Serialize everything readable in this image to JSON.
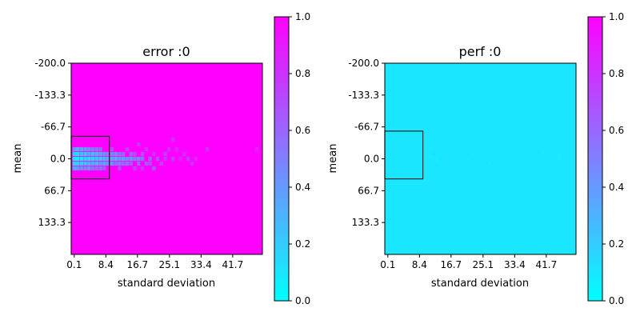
{
  "colors": {
    "low": "#00ffff",
    "high": "#ff00ff",
    "colormap": "cool"
  },
  "chart_data": [
    {
      "type": "heatmap",
      "title": "error :0",
      "xlabel": "standard deviation",
      "ylabel": "mean",
      "x_ticks": [
        "0.1",
        "8.4",
        "16.7",
        "25.1",
        "33.4",
        "41.7"
      ],
      "x_tick_values": [
        0.1,
        8.4,
        16.7,
        25.1,
        33.4,
        41.7
      ],
      "y_ticks": [
        "-200.0",
        "-133.3",
        "-66.7",
        "0.0",
        "66.7",
        "133.3"
      ],
      "y_tick_values": [
        -200.0,
        -133.3,
        -66.7,
        0.0,
        66.7,
        133.3
      ],
      "xlim": [
        -0.7,
        49.5
      ],
      "ylim": [
        -200,
        200
      ],
      "y_inverted": true,
      "colorbar": {
        "min": 0.0,
        "max": 1.0,
        "ticks": [
          "0.0",
          "0.2",
          "0.4",
          "0.6",
          "0.8",
          "1.0"
        ]
      },
      "background_value": 1.0,
      "highlight_box": {
        "x0": -0.7,
        "x1": 9.3,
        "y0": -47,
        "y1": 42
      },
      "cells": [
        [
          0.1,
          -10,
          0.2
        ],
        [
          0.1,
          0,
          0.1
        ],
        [
          0.1,
          10,
          0.15
        ],
        [
          0.1,
          -20,
          0.4
        ],
        [
          0.1,
          20,
          0.35
        ],
        [
          1.0,
          -10,
          0.15
        ],
        [
          1.0,
          0,
          0.05
        ],
        [
          1.0,
          10,
          0.2
        ],
        [
          1.0,
          -20,
          0.3
        ],
        [
          1.0,
          20,
          0.4
        ],
        [
          2.0,
          -10,
          0.25
        ],
        [
          2.0,
          0,
          0.1
        ],
        [
          2.0,
          10,
          0.2
        ],
        [
          2.0,
          -20,
          0.35
        ],
        [
          2.0,
          20,
          0.45
        ],
        [
          3.0,
          -10,
          0.2
        ],
        [
          3.0,
          0,
          0.15
        ],
        [
          3.0,
          10,
          0.25
        ],
        [
          3.0,
          -20,
          0.4
        ],
        [
          3.0,
          20,
          0.5
        ],
        [
          4.0,
          -10,
          0.3
        ],
        [
          4.0,
          0,
          0.1
        ],
        [
          4.0,
          10,
          0.3
        ],
        [
          4.0,
          -20,
          0.45
        ],
        [
          4.0,
          20,
          0.4
        ],
        [
          5.0,
          -10,
          0.25
        ],
        [
          5.0,
          0,
          0.15
        ],
        [
          5.0,
          10,
          0.35
        ],
        [
          5.0,
          -20,
          0.5
        ],
        [
          5.0,
          20,
          0.55
        ],
        [
          6.0,
          -10,
          0.3
        ],
        [
          6.0,
          0,
          0.2
        ],
        [
          6.0,
          10,
          0.3
        ],
        [
          6.0,
          -20,
          0.55
        ],
        [
          6.0,
          20,
          0.6
        ],
        [
          7.0,
          -10,
          0.35
        ],
        [
          7.0,
          0,
          0.2
        ],
        [
          7.0,
          10,
          0.4
        ],
        [
          7.0,
          -20,
          0.6
        ],
        [
          7.0,
          20,
          0.55
        ],
        [
          8.0,
          -10,
          0.4
        ],
        [
          8.0,
          0,
          0.25
        ],
        [
          8.0,
          10,
          0.35
        ],
        [
          8.0,
          20,
          0.65
        ],
        [
          9.0,
          -10,
          0.45
        ],
        [
          9.0,
          0,
          0.3
        ],
        [
          9.0,
          10,
          0.4
        ],
        [
          10.0,
          -10,
          0.5
        ],
        [
          10.0,
          0,
          0.35
        ],
        [
          10.0,
          10,
          0.45
        ],
        [
          10.0,
          -20,
          0.7
        ],
        [
          11.0,
          -10,
          0.45
        ],
        [
          11.0,
          0,
          0.3
        ],
        [
          11.0,
          10,
          0.55
        ],
        [
          12.0,
          -10,
          0.55
        ],
        [
          12.0,
          0,
          0.4
        ],
        [
          12.0,
          10,
          0.5
        ],
        [
          12.0,
          20,
          0.7
        ],
        [
          13.0,
          -10,
          0.6
        ],
        [
          13.0,
          0,
          0.35
        ],
        [
          13.0,
          10,
          0.6
        ],
        [
          14.0,
          0,
          0.45
        ],
        [
          14.0,
          10,
          0.55
        ],
        [
          14.0,
          -20,
          0.75
        ],
        [
          15.0,
          -10,
          0.6
        ],
        [
          15.0,
          0,
          0.4
        ],
        [
          15.0,
          10,
          0.65
        ],
        [
          16.0,
          0,
          0.5
        ],
        [
          16.0,
          -10,
          0.7
        ],
        [
          16.0,
          20,
          0.75
        ],
        [
          17.0,
          0,
          0.45
        ],
        [
          17.0,
          10,
          0.6
        ],
        [
          17.0,
          -30,
          0.8
        ],
        [
          18.0,
          0,
          0.55
        ],
        [
          18.0,
          -10,
          0.7
        ],
        [
          18.0,
          20,
          0.8
        ],
        [
          19.0,
          10,
          0.65
        ],
        [
          19.0,
          -20,
          0.8
        ],
        [
          20.0,
          0,
          0.6
        ],
        [
          20.0,
          10,
          0.7
        ],
        [
          21.0,
          20,
          0.65
        ],
        [
          21.0,
          -10,
          0.8
        ],
        [
          22.0,
          0,
          0.7
        ],
        [
          23.0,
          10,
          0.75
        ],
        [
          24.0,
          -10,
          0.75
        ],
        [
          24.0,
          0,
          0.8
        ],
        [
          25.0,
          -20,
          0.8
        ],
        [
          26.0,
          -40,
          0.8
        ],
        [
          26.0,
          0,
          0.75
        ],
        [
          27.0,
          -20,
          0.85
        ],
        [
          28.0,
          0,
          0.85
        ],
        [
          29.0,
          -10,
          0.8
        ],
        [
          30.0,
          0,
          0.75
        ],
        [
          31.0,
          10,
          0.8
        ],
        [
          32.0,
          0,
          0.85
        ],
        [
          35.0,
          -20,
          0.8
        ],
        [
          48.0,
          -20,
          0.85
        ]
      ]
    },
    {
      "type": "heatmap",
      "title": "perf :0",
      "xlabel": "standard deviation",
      "ylabel": "mean",
      "x_ticks": [
        "0.1",
        "8.4",
        "16.7",
        "25.1",
        "33.4",
        "41.7"
      ],
      "x_tick_values": [
        0.1,
        8.4,
        16.7,
        25.1,
        33.4,
        41.7
      ],
      "y_ticks": [
        "-200.0",
        "-133.3",
        "-66.7",
        "0.0",
        "66.7",
        "133.3"
      ],
      "y_tick_values": [
        -200.0,
        -133.3,
        -66.7,
        0.0,
        66.7,
        133.3
      ],
      "xlim": [
        -0.7,
        49.5
      ],
      "ylim": [
        -200,
        200
      ],
      "y_inverted": true,
      "colorbar": {
        "min": 0.0,
        "max": 1.0,
        "ticks": [
          "0.0",
          "0.2",
          "0.4",
          "0.6",
          "0.8",
          "1.0"
        ]
      },
      "background_value": 0.1,
      "highlight_box": {
        "x0": -0.7,
        "x1": 9.3,
        "y0": -58,
        "y1": 42
      },
      "cells": [
        [
          11.0,
          -5,
          0.08
        ],
        [
          12.0,
          -12,
          0.12
        ],
        [
          13.0,
          2,
          0.07
        ],
        [
          21.0,
          2,
          0.07
        ],
        [
          27.0,
          10,
          0.07
        ],
        [
          41.0,
          -12,
          0.07
        ],
        [
          45.0,
          -5,
          0.07
        ]
      ]
    }
  ]
}
